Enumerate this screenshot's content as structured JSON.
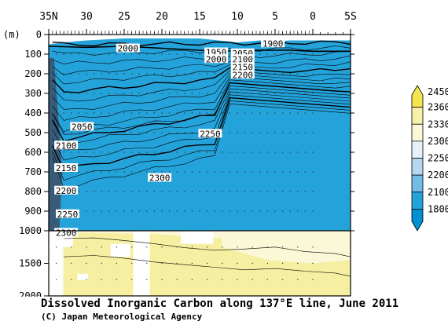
{
  "chart_data": {
    "type": "heatmap",
    "title": "Dissolved Inorganic Carbon along 137°E line, June 2011",
    "credit": "(C) Japan Meteorological Agency",
    "x_axis": {
      "tick_labels": [
        "35N",
        "30",
        "25",
        "20",
        "15",
        "10",
        "5",
        "0",
        "5S"
      ],
      "tick_values": [
        35,
        30,
        25,
        20,
        15,
        10,
        5,
        0,
        -5
      ],
      "range": [
        35,
        -5
      ]
    },
    "y_axis": {
      "unit_label": "(m)",
      "upper_tick_labels": [
        "0",
        "100",
        "200",
        "300",
        "400",
        "500",
        "600",
        "700",
        "800",
        "900",
        "1000"
      ],
      "lower_tick_labels": [
        "1500",
        "2000"
      ],
      "range": [
        0,
        2000
      ],
      "scale_break_depth": 1000
    },
    "colorbar": {
      "levels": [
        "2450",
        "2360",
        "2330",
        "2300",
        "2250",
        "2200",
        "2100",
        "1800"
      ],
      "colors": [
        "#f4e44e",
        "#f7f0a8",
        "#fbf8d8",
        "#e6f1fa",
        "#b5d7ef",
        "#72bde6",
        "#24a3db",
        "#0090d2"
      ]
    },
    "contour_labels": [
      {
        "text": "2000",
        "lat": 24.5,
        "depth": 70
      },
      {
        "text": "1900",
        "lat": 5.3,
        "depth": 45
      },
      {
        "text": "1950",
        "lat": 12.8,
        "depth": 90
      },
      {
        "text": "2000",
        "lat": 12.8,
        "depth": 125
      },
      {
        "text": "2050",
        "lat": 9.3,
        "depth": 95
      },
      {
        "text": "2100",
        "lat": 9.3,
        "depth": 125
      },
      {
        "text": "2150",
        "lat": 9.3,
        "depth": 165
      },
      {
        "text": "2200",
        "lat": 9.3,
        "depth": 205
      },
      {
        "text": "2050",
        "lat": 30.6,
        "depth": 470
      },
      {
        "text": "2250",
        "lat": 13.6,
        "depth": 505
      },
      {
        "text": "2100",
        "lat": 32.7,
        "depth": 565
      },
      {
        "text": "2150",
        "lat": 32.7,
        "depth": 680
      },
      {
        "text": "2200",
        "lat": 32.7,
        "depth": 795
      },
      {
        "text": "2300",
        "lat": 20.3,
        "depth": 730
      },
      {
        "text": "2250",
        "lat": 32.5,
        "depth": 915
      },
      {
        "text": "2300",
        "lat": 32.7,
        "depth": 1030
      }
    ],
    "grid": false,
    "legend": "right colorbar"
  }
}
